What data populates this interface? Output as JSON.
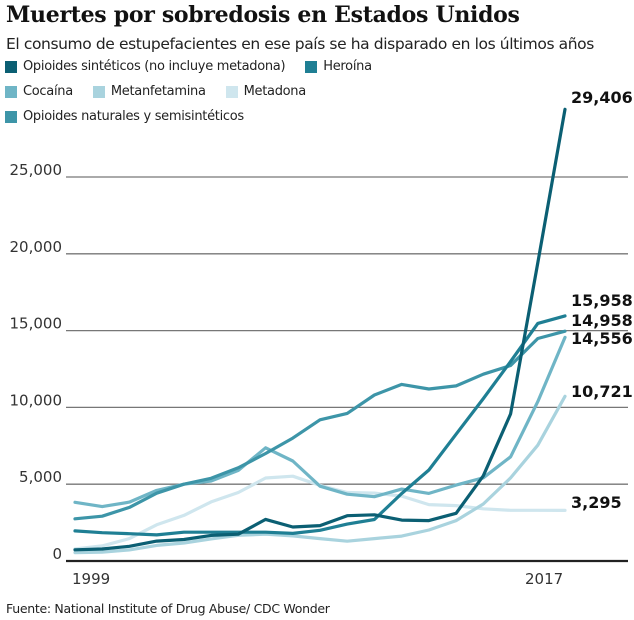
{
  "header": {
    "title": "Muertes por sobredosis en Estados Unidos",
    "subtitle": "El consumo de estupefacientes en ese país se ha disparado en los últimos años"
  },
  "footer": {
    "source": "Fuente: National Institute of Drug Abuse/ CDC Wonder"
  },
  "chart_data": {
    "type": "line",
    "title": "Muertes por sobredosis en Estados Unidos",
    "subtitle": "El consumo de estupefacientes en ese país se ha disparado en los últimos años",
    "xlabel": "",
    "ylabel": "",
    "x": [
      1999,
      2000,
      2001,
      2002,
      2003,
      2004,
      2005,
      2006,
      2007,
      2008,
      2009,
      2010,
      2011,
      2012,
      2013,
      2014,
      2015,
      2016,
      2017
    ],
    "x_tick_labels": [
      "1999",
      "2017"
    ],
    "ylim": [
      0,
      30000
    ],
    "y_ticks": [
      0,
      5000,
      10000,
      15000,
      20000,
      25000
    ],
    "y_tick_labels": [
      "0",
      "5,000",
      "10,000",
      "15,000",
      "20,000",
      "25,000"
    ],
    "grid": "horizontal",
    "legend_position": "top-left",
    "series": [
      {
        "name": "Opioides sintéticos (no incluye metadona)",
        "color": "#0b5f73",
        "end_label": "29,406",
        "values": [
          730,
          782,
          957,
          1295,
          1400,
          1664,
          1742,
          2707,
          2213,
          2306,
          2946,
          3007,
          2666,
          2628,
          3105,
          5544,
          9580,
          19413,
          29406
        ]
      },
      {
        "name": "Heroína",
        "color": "#1f7f94",
        "end_label": "15,958",
        "values": [
          1960,
          1842,
          1779,
          1700,
          1878,
          1878,
          1878,
          1878,
          1800,
          2000,
          2400,
          2700,
          4397,
          5925,
          8257,
          10574,
          12989,
          15469,
          15958
        ]
      },
      {
        "name": "Cocaína",
        "color": "#6fb5c6",
        "end_label": "14,556",
        "values": [
          3822,
          3544,
          3833,
          4599,
          5000,
          5207,
          5900,
          7372,
          6512,
          4867,
          4350,
          4183,
          4681,
          4404,
          4944,
          5415,
          6784,
          10375,
          14556
        ]
      },
      {
        "name": "Metanfetamina",
        "color": "#a9d3de",
        "end_label": "10,721",
        "values": [
          547,
          578,
          725,
          1014,
          1172,
          1436,
          1673,
          1747,
          1634,
          1459,
          1287,
          1456,
          1618,
          2021,
          2628,
          3708,
          5409,
          7542,
          10721
        ]
      },
      {
        "name": "Metadona",
        "color": "#cfe6ee",
        "end_label": "3,295",
        "values": [
          784,
          986,
          1457,
          2358,
          2972,
          3845,
          4460,
          5406,
          5518,
          4924,
          4460,
          4418,
          4223,
          3670,
          3610,
          3400,
          3300,
          3300,
          3295
        ]
      },
      {
        "name": "Opioides naturales y semisintéticos",
        "color": "#3d95a8",
        "end_label": "14,958",
        "values": [
          2749,
          2917,
          3491,
          4416,
          5000,
          5384,
          6068,
          7000,
          8000,
          9192,
          9608,
          10809,
          11500,
          11200,
          11400,
          12159,
          12727,
          14487,
          14958
        ]
      }
    ]
  },
  "legend": {
    "rows": [
      [
        0,
        1
      ],
      [
        2,
        3,
        4
      ],
      [
        5
      ]
    ]
  }
}
